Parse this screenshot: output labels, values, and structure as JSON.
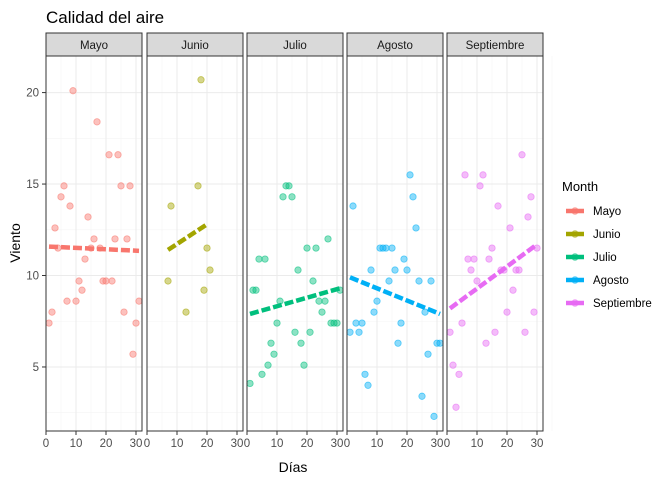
{
  "chart_data": {
    "type": "scatter",
    "title": "Calidad del aire",
    "xlabel": "Días",
    "ylabel": "Viento",
    "legend_title": "Month",
    "legend_position": "right",
    "xlim": [
      0,
      32
    ],
    "ylim": [
      1.5,
      22
    ],
    "x_ticks": [
      0,
      10,
      20,
      30
    ],
    "y_ticks": [
      5,
      10,
      15,
      20
    ],
    "grid": true,
    "series": [
      {
        "name": "Mayo",
        "facet": "Mayo",
        "color": "#F8766D",
        "points": [
          [
            1,
            7.4
          ],
          [
            2,
            8.0
          ],
          [
            3,
            12.6
          ],
          [
            4,
            11.5
          ],
          [
            5,
            14.3
          ],
          [
            6,
            14.9
          ],
          [
            7,
            8.6
          ],
          [
            8,
            13.8
          ],
          [
            9,
            20.1
          ],
          [
            10,
            8.6
          ],
          [
            11,
            9.7
          ],
          [
            12,
            9.2
          ],
          [
            13,
            10.9
          ],
          [
            14,
            13.2
          ],
          [
            15,
            11.5
          ],
          [
            16,
            12.0
          ],
          [
            17,
            18.4
          ],
          [
            18,
            11.5
          ],
          [
            19,
            9.7
          ],
          [
            20,
            9.7
          ],
          [
            21,
            16.6
          ],
          [
            22,
            9.7
          ],
          [
            23,
            12.0
          ],
          [
            24,
            16.6
          ],
          [
            25,
            14.9
          ],
          [
            26,
            8.0
          ],
          [
            27,
            12.0
          ],
          [
            28,
            14.9
          ],
          [
            29,
            5.7
          ],
          [
            30,
            7.4
          ],
          [
            31,
            8.6
          ]
        ],
        "trend": [
          [
            1,
            11.58
          ],
          [
            31,
            11.35
          ]
        ]
      },
      {
        "name": "Junio",
        "facet": "Junio",
        "color": "#A3A500",
        "points": [
          [
            7,
            9.7
          ],
          [
            8,
            13.8
          ],
          [
            13,
            8.0
          ],
          [
            17,
            14.9
          ],
          [
            18,
            20.7
          ],
          [
            19,
            9.2
          ],
          [
            20,
            11.5
          ],
          [
            21,
            10.3
          ]
        ],
        "trend": [
          [
            7,
            11.4
          ],
          [
            20,
            12.8
          ]
        ]
      },
      {
        "name": "Julio",
        "facet": "Julio",
        "color": "#00BF7D",
        "points": [
          [
            1,
            4.1
          ],
          [
            2,
            9.2
          ],
          [
            3,
            9.2
          ],
          [
            4,
            10.9
          ],
          [
            5,
            4.6
          ],
          [
            6,
            10.9
          ],
          [
            7,
            5.1
          ],
          [
            8,
            6.3
          ],
          [
            9,
            5.7
          ],
          [
            10,
            7.4
          ],
          [
            11,
            8.6
          ],
          [
            12,
            14.3
          ],
          [
            13,
            14.9
          ],
          [
            14,
            14.9
          ],
          [
            15,
            14.3
          ],
          [
            16,
            6.9
          ],
          [
            17,
            10.3
          ],
          [
            18,
            6.3
          ],
          [
            19,
            5.1
          ],
          [
            20,
            11.5
          ],
          [
            21,
            6.9
          ],
          [
            22,
            9.7
          ],
          [
            23,
            11.5
          ],
          [
            24,
            8.6
          ],
          [
            25,
            8.0
          ],
          [
            26,
            8.6
          ],
          [
            27,
            12.0
          ],
          [
            28,
            7.4
          ],
          [
            29,
            7.4
          ],
          [
            30,
            7.4
          ],
          [
            31,
            9.2
          ]
        ],
        "trend": [
          [
            1,
            7.9
          ],
          [
            31,
            9.3
          ]
        ]
      },
      {
        "name": "Agosto",
        "facet": "Agosto",
        "color": "#00B0F6",
        "points": [
          [
            1,
            6.9
          ],
          [
            2,
            13.8
          ],
          [
            3,
            7.4
          ],
          [
            4,
            6.9
          ],
          [
            5,
            7.4
          ],
          [
            6,
            4.6
          ],
          [
            7,
            4.0
          ],
          [
            8,
            10.3
          ],
          [
            9,
            8.0
          ],
          [
            10,
            8.6
          ],
          [
            11,
            11.5
          ],
          [
            12,
            11.5
          ],
          [
            13,
            11.5
          ],
          [
            14,
            9.7
          ],
          [
            15,
            11.5
          ],
          [
            16,
            10.3
          ],
          [
            17,
            6.3
          ],
          [
            18,
            7.4
          ],
          [
            19,
            10.9
          ],
          [
            20,
            10.3
          ],
          [
            21,
            15.5
          ],
          [
            22,
            14.3
          ],
          [
            23,
            12.6
          ],
          [
            24,
            9.7
          ],
          [
            25,
            3.4
          ],
          [
            26,
            8.0
          ],
          [
            27,
            5.7
          ],
          [
            28,
            9.7
          ],
          [
            29,
            2.3
          ],
          [
            30,
            6.3
          ],
          [
            31,
            6.3
          ]
        ],
        "trend": [
          [
            1,
            9.9
          ],
          [
            31,
            7.9
          ]
        ]
      },
      {
        "name": "Septiembre",
        "facet": "Septiembre",
        "color": "#E76BF3",
        "points": [
          [
            1,
            6.9
          ],
          [
            2,
            5.1
          ],
          [
            3,
            2.8
          ],
          [
            4,
            4.6
          ],
          [
            5,
            7.4
          ],
          [
            6,
            15.5
          ],
          [
            7,
            10.9
          ],
          [
            8,
            10.3
          ],
          [
            9,
            10.9
          ],
          [
            10,
            9.7
          ],
          [
            11,
            14.9
          ],
          [
            12,
            15.5
          ],
          [
            13,
            6.3
          ],
          [
            14,
            10.9
          ],
          [
            15,
            11.5
          ],
          [
            16,
            6.9
          ],
          [
            17,
            13.8
          ],
          [
            18,
            10.3
          ],
          [
            19,
            10.3
          ],
          [
            20,
            8.0
          ],
          [
            21,
            12.6
          ],
          [
            22,
            9.2
          ],
          [
            23,
            10.3
          ],
          [
            24,
            10.3
          ],
          [
            25,
            16.6
          ],
          [
            26,
            6.9
          ],
          [
            27,
            13.2
          ],
          [
            28,
            14.3
          ],
          [
            29,
            8.0
          ],
          [
            30,
            11.5
          ]
        ],
        "trend": [
          [
            1,
            8.2
          ],
          [
            30,
            11.7
          ]
        ]
      }
    ]
  }
}
